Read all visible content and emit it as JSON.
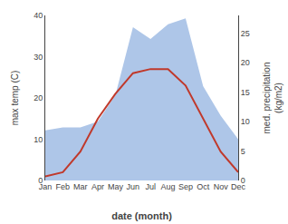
{
  "chart_data": {
    "type": "line",
    "xlabel": "date (month)",
    "ylabel": "max temp (C)",
    "y2label": "med. precipitation\n(kg/m2)",
    "categories": [
      "Jan",
      "Feb",
      "Mar",
      "Apr",
      "May",
      "Jun",
      "Jul",
      "Aug",
      "Sep",
      "Oct",
      "Nov",
      "Dec"
    ],
    "series": [
      {
        "type": "area",
        "axis": "y2",
        "color": "#aec6e8",
        "values": [
          8.5,
          9.0,
          9.0,
          10.0,
          14.5,
          26.0,
          24.0,
          26.5,
          27.5,
          16.0,
          11.0,
          7.0
        ]
      },
      {
        "type": "line",
        "color": "#c0392b",
        "values": [
          1,
          2,
          7,
          15,
          21,
          26,
          27,
          27,
          23,
          15,
          7,
          2
        ]
      }
    ],
    "ylim": [
      0,
      40
    ],
    "yticks": [
      0,
      10,
      20,
      30,
      40
    ],
    "y2lim": [
      0,
      28
    ],
    "y2ticks": [
      0,
      5,
      10,
      15,
      20,
      25
    ],
    "grid": false
  }
}
